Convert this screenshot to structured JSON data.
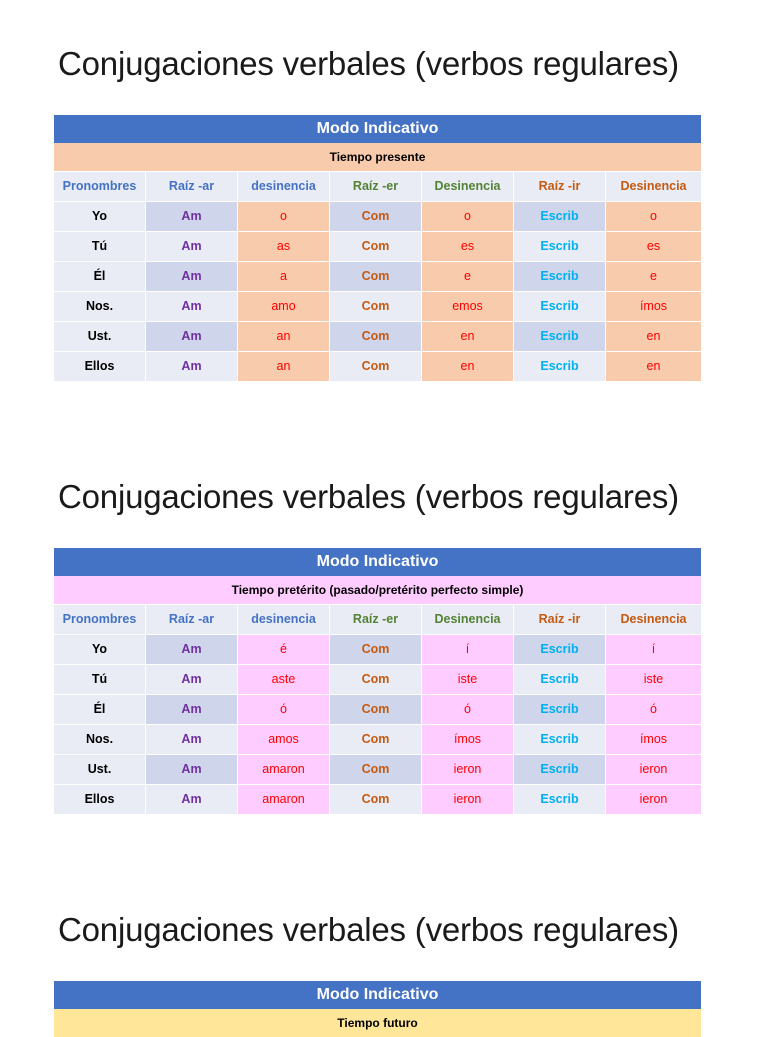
{
  "colors": {
    "header_blue": "#4472c4",
    "present_tint": "#f8cbad",
    "preterite_tint": "#ffccff",
    "future_tint": "#ffe699",
    "row_light": "#e9ecf5",
    "row_dark": "#cfd5ea"
  },
  "sections": [
    {
      "title": "Conjugaciones verbales (verbos regulares)",
      "mode": "Modo Indicativo",
      "tense": "Tiempo presente",
      "headers": [
        "Pronombres",
        "Raíz -ar",
        "desinencia",
        "Raíz -er",
        "Desinencia",
        "Raíz -ir",
        "Desinencia"
      ],
      "rows": [
        [
          "Yo",
          "Am",
          "o",
          "Com",
          "o",
          "Escrib",
          "o"
        ],
        [
          "Tú",
          "Am",
          "as",
          "Com",
          "es",
          "Escrib",
          "es"
        ],
        [
          "Él",
          "Am",
          "a",
          "Com",
          "e",
          "Escrib",
          "e"
        ],
        [
          "Nos.",
          "Am",
          "amo",
          "Com",
          "emos",
          "Escrib",
          "ímos"
        ],
        [
          "Ust.",
          "Am",
          "an",
          "Com",
          "en",
          "Escrib",
          "en"
        ],
        [
          "Ellos",
          "Am",
          "an",
          "Com",
          "en",
          "Escrib",
          "en"
        ]
      ]
    },
    {
      "title": "Conjugaciones verbales (verbos regulares)",
      "mode": "Modo Indicativo",
      "tense": "Tiempo pretérito (pasado/pretérito perfecto simple)",
      "headers": [
        "Pronombres",
        "Raíz -ar",
        "desinencia",
        "Raíz -er",
        "Desinencia",
        "Raíz -ir",
        "Desinencia"
      ],
      "rows": [
        [
          "Yo",
          "Am",
          "é",
          "Com",
          "í",
          "Escrib",
          "í"
        ],
        [
          "Tú",
          "Am",
          "aste",
          "Com",
          "iste",
          "Escrib",
          "iste"
        ],
        [
          "Él",
          "Am",
          "ó",
          "Com",
          "ó",
          "Escrib",
          "ó"
        ],
        [
          "Nos.",
          "Am",
          "amos",
          "Com",
          "ímos",
          "Escrib",
          "ímos"
        ],
        [
          "Ust.",
          "Am",
          "amaron",
          "Com",
          "ieron",
          "Escrib",
          "ieron"
        ],
        [
          "Ellos",
          "Am",
          "amaron",
          "Com",
          "ieron",
          "Escrib",
          "ieron"
        ]
      ]
    },
    {
      "title": "Conjugaciones verbales (verbos regulares)",
      "mode": "Modo Indicativo",
      "tense": "Tiempo futuro",
      "headers": [],
      "rows": []
    }
  ]
}
